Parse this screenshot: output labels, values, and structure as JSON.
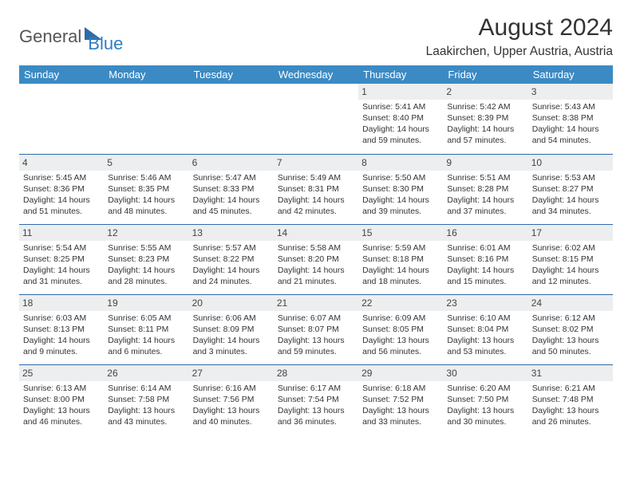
{
  "logo": {
    "part1": "General",
    "part2": "Blue"
  },
  "title": "August 2024",
  "location": "Laakirchen, Upper Austria, Austria",
  "colors": {
    "header_bg": "#3b8ac4",
    "header_text": "#ffffff",
    "border": "#2f6aa8",
    "daynum_bg": "#eceeef",
    "logo_blue": "#2f6aa8",
    "text": "#333333"
  },
  "weekdays": [
    "Sunday",
    "Monday",
    "Tuesday",
    "Wednesday",
    "Thursday",
    "Friday",
    "Saturday"
  ],
  "weeks": [
    [
      {
        "n": "",
        "lines": []
      },
      {
        "n": "",
        "lines": []
      },
      {
        "n": "",
        "lines": []
      },
      {
        "n": "",
        "lines": []
      },
      {
        "n": "1",
        "lines": [
          "Sunrise: 5:41 AM",
          "Sunset: 8:40 PM",
          "Daylight: 14 hours and 59 minutes."
        ]
      },
      {
        "n": "2",
        "lines": [
          "Sunrise: 5:42 AM",
          "Sunset: 8:39 PM",
          "Daylight: 14 hours and 57 minutes."
        ]
      },
      {
        "n": "3",
        "lines": [
          "Sunrise: 5:43 AM",
          "Sunset: 8:38 PM",
          "Daylight: 14 hours and 54 minutes."
        ]
      }
    ],
    [
      {
        "n": "4",
        "lines": [
          "Sunrise: 5:45 AM",
          "Sunset: 8:36 PM",
          "Daylight: 14 hours and 51 minutes."
        ]
      },
      {
        "n": "5",
        "lines": [
          "Sunrise: 5:46 AM",
          "Sunset: 8:35 PM",
          "Daylight: 14 hours and 48 minutes."
        ]
      },
      {
        "n": "6",
        "lines": [
          "Sunrise: 5:47 AM",
          "Sunset: 8:33 PM",
          "Daylight: 14 hours and 45 minutes."
        ]
      },
      {
        "n": "7",
        "lines": [
          "Sunrise: 5:49 AM",
          "Sunset: 8:31 PM",
          "Daylight: 14 hours and 42 minutes."
        ]
      },
      {
        "n": "8",
        "lines": [
          "Sunrise: 5:50 AM",
          "Sunset: 8:30 PM",
          "Daylight: 14 hours and 39 minutes."
        ]
      },
      {
        "n": "9",
        "lines": [
          "Sunrise: 5:51 AM",
          "Sunset: 8:28 PM",
          "Daylight: 14 hours and 37 minutes."
        ]
      },
      {
        "n": "10",
        "lines": [
          "Sunrise: 5:53 AM",
          "Sunset: 8:27 PM",
          "Daylight: 14 hours and 34 minutes."
        ]
      }
    ],
    [
      {
        "n": "11",
        "lines": [
          "Sunrise: 5:54 AM",
          "Sunset: 8:25 PM",
          "Daylight: 14 hours and 31 minutes."
        ]
      },
      {
        "n": "12",
        "lines": [
          "Sunrise: 5:55 AM",
          "Sunset: 8:23 PM",
          "Daylight: 14 hours and 28 minutes."
        ]
      },
      {
        "n": "13",
        "lines": [
          "Sunrise: 5:57 AM",
          "Sunset: 8:22 PM",
          "Daylight: 14 hours and 24 minutes."
        ]
      },
      {
        "n": "14",
        "lines": [
          "Sunrise: 5:58 AM",
          "Sunset: 8:20 PM",
          "Daylight: 14 hours and 21 minutes."
        ]
      },
      {
        "n": "15",
        "lines": [
          "Sunrise: 5:59 AM",
          "Sunset: 8:18 PM",
          "Daylight: 14 hours and 18 minutes."
        ]
      },
      {
        "n": "16",
        "lines": [
          "Sunrise: 6:01 AM",
          "Sunset: 8:16 PM",
          "Daylight: 14 hours and 15 minutes."
        ]
      },
      {
        "n": "17",
        "lines": [
          "Sunrise: 6:02 AM",
          "Sunset: 8:15 PM",
          "Daylight: 14 hours and 12 minutes."
        ]
      }
    ],
    [
      {
        "n": "18",
        "lines": [
          "Sunrise: 6:03 AM",
          "Sunset: 8:13 PM",
          "Daylight: 14 hours and 9 minutes."
        ]
      },
      {
        "n": "19",
        "lines": [
          "Sunrise: 6:05 AM",
          "Sunset: 8:11 PM",
          "Daylight: 14 hours and 6 minutes."
        ]
      },
      {
        "n": "20",
        "lines": [
          "Sunrise: 6:06 AM",
          "Sunset: 8:09 PM",
          "Daylight: 14 hours and 3 minutes."
        ]
      },
      {
        "n": "21",
        "lines": [
          "Sunrise: 6:07 AM",
          "Sunset: 8:07 PM",
          "Daylight: 13 hours and 59 minutes."
        ]
      },
      {
        "n": "22",
        "lines": [
          "Sunrise: 6:09 AM",
          "Sunset: 8:05 PM",
          "Daylight: 13 hours and 56 minutes."
        ]
      },
      {
        "n": "23",
        "lines": [
          "Sunrise: 6:10 AM",
          "Sunset: 8:04 PM",
          "Daylight: 13 hours and 53 minutes."
        ]
      },
      {
        "n": "24",
        "lines": [
          "Sunrise: 6:12 AM",
          "Sunset: 8:02 PM",
          "Daylight: 13 hours and 50 minutes."
        ]
      }
    ],
    [
      {
        "n": "25",
        "lines": [
          "Sunrise: 6:13 AM",
          "Sunset: 8:00 PM",
          "Daylight: 13 hours and 46 minutes."
        ]
      },
      {
        "n": "26",
        "lines": [
          "Sunrise: 6:14 AM",
          "Sunset: 7:58 PM",
          "Daylight: 13 hours and 43 minutes."
        ]
      },
      {
        "n": "27",
        "lines": [
          "Sunrise: 6:16 AM",
          "Sunset: 7:56 PM",
          "Daylight: 13 hours and 40 minutes."
        ]
      },
      {
        "n": "28",
        "lines": [
          "Sunrise: 6:17 AM",
          "Sunset: 7:54 PM",
          "Daylight: 13 hours and 36 minutes."
        ]
      },
      {
        "n": "29",
        "lines": [
          "Sunrise: 6:18 AM",
          "Sunset: 7:52 PM",
          "Daylight: 13 hours and 33 minutes."
        ]
      },
      {
        "n": "30",
        "lines": [
          "Sunrise: 6:20 AM",
          "Sunset: 7:50 PM",
          "Daylight: 13 hours and 30 minutes."
        ]
      },
      {
        "n": "31",
        "lines": [
          "Sunrise: 6:21 AM",
          "Sunset: 7:48 PM",
          "Daylight: 13 hours and 26 minutes."
        ]
      }
    ]
  ]
}
